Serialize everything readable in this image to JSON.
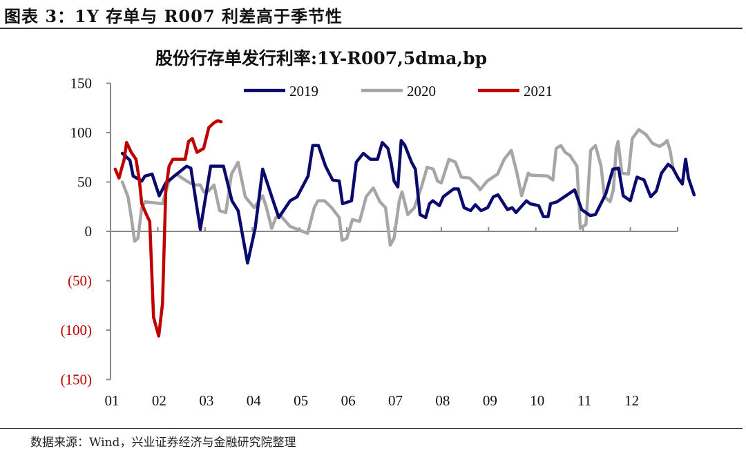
{
  "figure_title": "图表 3：1Y 存单与 R007 利差高于季节性",
  "source": "数据来源：Wind，兴业证券经济与金融研究院整理",
  "chart_data": {
    "type": "line",
    "title": "股份行存单发行利率:1Y-R007,5dma,bp",
    "xlabel": "",
    "ylabel": "",
    "xlim": [
      1,
      13
    ],
    "ylim": [
      -150,
      150
    ],
    "x_ticks": [
      1,
      2,
      3,
      4,
      5,
      6,
      7,
      8,
      9,
      10,
      11,
      12
    ],
    "x_tick_labels": [
      "01",
      "02",
      "03",
      "04",
      "05",
      "06",
      "07",
      "08",
      "09",
      "10",
      "11",
      "12"
    ],
    "y_ticks": [
      150,
      100,
      50,
      0,
      -50,
      -100,
      -150
    ],
    "y_tick_labels": [
      "150",
      "100",
      "50",
      "0",
      "(50)",
      "(100)",
      "(150)"
    ],
    "negative_label_color": "#c00000",
    "grid": false,
    "legend_position": "top",
    "series": [
      {
        "name": "2019",
        "color": "#0a0a6e",
        "points": [
          [
            1.25,
            79
          ],
          [
            1.41,
            72
          ],
          [
            1.48,
            56
          ],
          [
            1.66,
            51
          ],
          [
            1.73,
            56
          ],
          [
            1.88,
            58
          ],
          [
            2.03,
            36
          ],
          [
            2.17,
            49
          ],
          [
            2.61,
            66
          ],
          [
            2.7,
            64
          ],
          [
            2.9,
            2
          ],
          [
            3.12,
            66
          ],
          [
            3.39,
            66
          ],
          [
            3.57,
            31
          ],
          [
            3.7,
            21
          ],
          [
            3.9,
            -32
          ],
          [
            4.06,
            3
          ],
          [
            4.22,
            63
          ],
          [
            4.44,
            31
          ],
          [
            4.56,
            14
          ],
          [
            4.8,
            31
          ],
          [
            4.95,
            35
          ],
          [
            5.18,
            56
          ],
          [
            5.28,
            87
          ],
          [
            5.4,
            87
          ],
          [
            5.55,
            66
          ],
          [
            5.7,
            52
          ],
          [
            5.84,
            51
          ],
          [
            5.91,
            28
          ],
          [
            6.1,
            31
          ],
          [
            6.2,
            70
          ],
          [
            6.35,
            79
          ],
          [
            6.5,
            73
          ],
          [
            6.65,
            73
          ],
          [
            6.75,
            90
          ],
          [
            6.87,
            84
          ],
          [
            6.94,
            69
          ],
          [
            7.0,
            51
          ],
          [
            7.08,
            45
          ],
          [
            7.15,
            92
          ],
          [
            7.23,
            87
          ],
          [
            7.37,
            70
          ],
          [
            7.45,
            63
          ],
          [
            7.55,
            17
          ],
          [
            7.67,
            14
          ],
          [
            7.75,
            28
          ],
          [
            7.82,
            31
          ],
          [
            7.96,
            26
          ],
          [
            8.04,
            35
          ],
          [
            8.26,
            43
          ],
          [
            8.36,
            43
          ],
          [
            8.48,
            24
          ],
          [
            8.62,
            21
          ],
          [
            8.72,
            27
          ],
          [
            8.84,
            21
          ],
          [
            8.98,
            24
          ],
          [
            9.1,
            35
          ],
          [
            9.2,
            37
          ],
          [
            9.28,
            31
          ],
          [
            9.4,
            22
          ],
          [
            9.5,
            24
          ],
          [
            9.58,
            19
          ],
          [
            9.8,
            31
          ],
          [
            9.88,
            28
          ],
          [
            10.06,
            26
          ],
          [
            10.16,
            15
          ],
          [
            10.26,
            15
          ],
          [
            10.31,
            28
          ],
          [
            10.45,
            30
          ],
          [
            10.82,
            42
          ],
          [
            10.97,
            22
          ],
          [
            11.15,
            16
          ],
          [
            11.26,
            17
          ],
          [
            11.48,
            38
          ],
          [
            11.63,
            63
          ],
          [
            11.75,
            64
          ],
          [
            11.85,
            36
          ],
          [
            12.0,
            31
          ],
          [
            12.14,
            55
          ],
          [
            12.29,
            52
          ],
          [
            12.43,
            35
          ],
          [
            12.55,
            41
          ],
          [
            12.66,
            59
          ],
          [
            12.8,
            68
          ],
          [
            12.9,
            64
          ],
          [
            13.01,
            54
          ],
          [
            13.1,
            48
          ],
          [
            13.17,
            73
          ],
          [
            13.23,
            54
          ],
          [
            13.35,
            37
          ]
        ]
      },
      {
        "name": "2020",
        "color": "#a6a6a6",
        "points": [
          [
            1.25,
            50
          ],
          [
            1.37,
            35
          ],
          [
            1.44,
            14
          ],
          [
            1.51,
            -10
          ],
          [
            1.58,
            -7
          ],
          [
            1.66,
            24
          ],
          [
            1.73,
            30
          ],
          [
            2.1,
            28
          ],
          [
            2.24,
            51
          ],
          [
            2.39,
            58
          ],
          [
            2.61,
            51
          ],
          [
            2.76,
            47
          ],
          [
            2.9,
            47
          ],
          [
            2.97,
            40
          ],
          [
            3.08,
            41
          ],
          [
            3.19,
            47
          ],
          [
            3.31,
            21
          ],
          [
            3.44,
            19
          ],
          [
            3.56,
            58
          ],
          [
            3.7,
            70
          ],
          [
            3.85,
            35
          ],
          [
            4.04,
            24
          ],
          [
            4.14,
            31
          ],
          [
            4.22,
            36
          ],
          [
            4.3,
            24
          ],
          [
            4.41,
            3
          ],
          [
            4.5,
            14
          ],
          [
            4.58,
            17
          ],
          [
            4.8,
            5
          ],
          [
            5.17,
            -2
          ],
          [
            5.31,
            24
          ],
          [
            5.39,
            31
          ],
          [
            5.53,
            31
          ],
          [
            5.68,
            24
          ],
          [
            5.84,
            14
          ],
          [
            5.9,
            -9
          ],
          [
            6.0,
            -7
          ],
          [
            6.12,
            12
          ],
          [
            6.27,
            10
          ],
          [
            6.41,
            35
          ],
          [
            6.56,
            44
          ],
          [
            6.7,
            30
          ],
          [
            6.82,
            24
          ],
          [
            6.92,
            -14
          ],
          [
            7.0,
            -7
          ],
          [
            7.11,
            31
          ],
          [
            7.17,
            40
          ],
          [
            7.29,
            17
          ],
          [
            7.43,
            24
          ],
          [
            7.58,
            45
          ],
          [
            7.7,
            65
          ],
          [
            7.83,
            63
          ],
          [
            7.92,
            51
          ],
          [
            8.0,
            49
          ],
          [
            8.16,
            73
          ],
          [
            8.3,
            70
          ],
          [
            8.42,
            55
          ],
          [
            8.6,
            54
          ],
          [
            8.78,
            45
          ],
          [
            8.82,
            42
          ],
          [
            8.97,
            51
          ],
          [
            9.19,
            58
          ],
          [
            9.33,
            73
          ],
          [
            9.48,
            82
          ],
          [
            9.6,
            59
          ],
          [
            9.7,
            36
          ],
          [
            9.84,
            59
          ],
          [
            9.88,
            57
          ],
          [
            10.25,
            56
          ],
          [
            10.36,
            52
          ],
          [
            10.43,
            84
          ],
          [
            10.53,
            87
          ],
          [
            10.62,
            80
          ],
          [
            10.72,
            77
          ],
          [
            10.87,
            66
          ],
          [
            10.94,
            3
          ],
          [
            11.06,
            7
          ],
          [
            11.16,
            82
          ],
          [
            11.26,
            87
          ],
          [
            11.38,
            66
          ],
          [
            11.45,
            35
          ],
          [
            11.57,
            30
          ],
          [
            11.64,
            42
          ],
          [
            11.7,
            84
          ],
          [
            11.74,
            91
          ],
          [
            11.82,
            59
          ],
          [
            11.96,
            58
          ],
          [
            12.04,
            94
          ],
          [
            12.18,
            103
          ],
          [
            12.33,
            98
          ],
          [
            12.47,
            89
          ],
          [
            12.62,
            86
          ],
          [
            12.72,
            89
          ],
          [
            12.78,
            92
          ],
          [
            12.84,
            82
          ],
          [
            12.91,
            62
          ]
        ]
      },
      {
        "name": "2021",
        "color": "#c00000",
        "points": [
          [
            1.1,
            63
          ],
          [
            1.18,
            54
          ],
          [
            1.29,
            73
          ],
          [
            1.34,
            90
          ],
          [
            1.44,
            80
          ],
          [
            1.54,
            73
          ],
          [
            1.61,
            52
          ],
          [
            1.66,
            28
          ],
          [
            1.76,
            17
          ],
          [
            1.83,
            10
          ],
          [
            1.91,
            -87
          ],
          [
            2.02,
            -106
          ],
          [
            2.1,
            -73
          ],
          [
            2.17,
            42
          ],
          [
            2.24,
            66
          ],
          [
            2.32,
            73
          ],
          [
            2.58,
            73
          ],
          [
            2.65,
            91
          ],
          [
            2.73,
            94
          ],
          [
            2.83,
            80
          ],
          [
            2.97,
            84
          ],
          [
            3.08,
            105
          ],
          [
            3.19,
            110
          ],
          [
            3.27,
            112
          ],
          [
            3.34,
            111
          ]
        ]
      }
    ]
  }
}
